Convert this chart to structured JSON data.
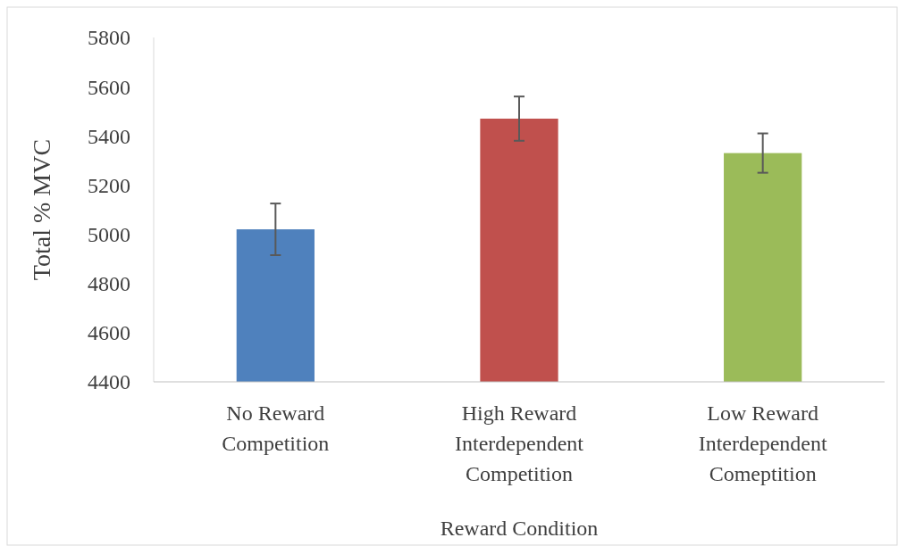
{
  "chart_data": {
    "type": "bar",
    "xlabel": "Reward Condition",
    "ylabel": "Total % MVC",
    "categories": [
      "No Reward Competition",
      "High Reward Interdependent Competition",
      "Low Reward Interdependent Comeptition"
    ],
    "values": [
      5020,
      5470,
      5330
    ],
    "colors": [
      "#4f81bd",
      "#c0504d",
      "#9bbb59"
    ],
    "errors": [
      105,
      90,
      80
    ],
    "ylim": [
      4400,
      5800
    ],
    "yticks": [
      4400,
      4600,
      4800,
      5000,
      5200,
      5400,
      5600,
      5800
    ],
    "grid": false
  }
}
